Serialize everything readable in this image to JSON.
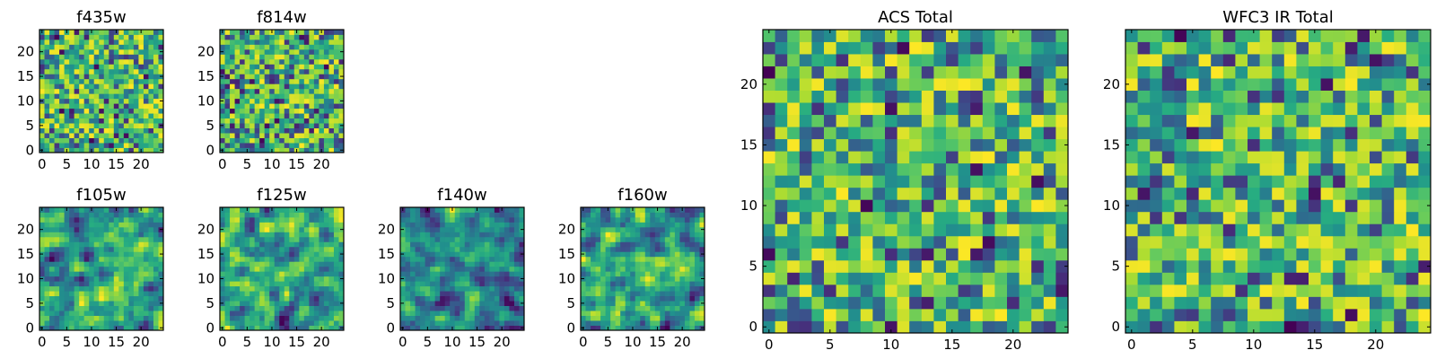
{
  "chart_data": [
    {
      "type": "heatmap",
      "title": "f435w",
      "grid_size": 25,
      "x_ticks": [
        0,
        5,
        10,
        15,
        20
      ],
      "y_ticks": [
        0,
        5,
        10,
        15,
        20
      ],
      "xlim": [
        0,
        25
      ],
      "ylim": [
        0,
        25
      ],
      "colormap": "viridis",
      "seed": 11,
      "smooth": 0,
      "mean": 0.7,
      "spread": 0.28
    },
    {
      "type": "heatmap",
      "title": "f814w",
      "grid_size": 25,
      "x_ticks": [
        0,
        5,
        10,
        15,
        20
      ],
      "y_ticks": [
        0,
        5,
        10,
        15,
        20
      ],
      "xlim": [
        0,
        25
      ],
      "ylim": [
        0,
        25
      ],
      "colormap": "viridis",
      "seed": 23,
      "smooth": 0,
      "mean": 0.68,
      "spread": 0.3
    },
    {
      "type": "heatmap",
      "title": "f105w",
      "grid_size": 25,
      "x_ticks": [
        0,
        5,
        10,
        15,
        20
      ],
      "y_ticks": [
        0,
        5,
        10,
        15,
        20
      ],
      "xlim": [
        0,
        25
      ],
      "ylim": [
        0,
        25
      ],
      "colormap": "viridis",
      "seed": 37,
      "smooth": 1,
      "mean": 0.7,
      "spread": 0.32
    },
    {
      "type": "heatmap",
      "title": "f125w",
      "grid_size": 25,
      "x_ticks": [
        0,
        5,
        10,
        15,
        20
      ],
      "y_ticks": [
        0,
        5,
        10,
        15,
        20
      ],
      "xlim": [
        0,
        25
      ],
      "ylim": [
        0,
        25
      ],
      "colormap": "viridis",
      "seed": 41,
      "smooth": 1,
      "mean": 0.68,
      "spread": 0.34
    },
    {
      "type": "heatmap",
      "title": "f140w",
      "grid_size": 25,
      "x_ticks": [
        0,
        5,
        10,
        15,
        20
      ],
      "y_ticks": [
        0,
        5,
        10,
        15,
        20
      ],
      "xlim": [
        0,
        25
      ],
      "ylim": [
        0,
        25
      ],
      "colormap": "viridis",
      "seed": 53,
      "smooth": 1,
      "mean": 0.72,
      "spread": 0.34
    },
    {
      "type": "heatmap",
      "title": "f160w",
      "grid_size": 25,
      "x_ticks": [
        0,
        5,
        10,
        15,
        20
      ],
      "y_ticks": [
        0,
        5,
        10,
        15,
        20
      ],
      "xlim": [
        0,
        25
      ],
      "ylim": [
        0,
        25
      ],
      "colormap": "viridis",
      "seed": 67,
      "smooth": 1,
      "mean": 0.62,
      "spread": 0.4
    },
    {
      "type": "heatmap",
      "title": "ACS Total",
      "grid_size": 25,
      "x_ticks": [
        0,
        5,
        10,
        15,
        20
      ],
      "y_ticks": [
        0,
        5,
        10,
        15,
        20
      ],
      "xlim": [
        0,
        25
      ],
      "ylim": [
        0,
        25
      ],
      "colormap": "viridis",
      "seed": 79,
      "smooth": 0,
      "mean": 0.7,
      "spread": 0.26
    },
    {
      "type": "heatmap",
      "title": "WFC3 IR Total",
      "grid_size": 25,
      "x_ticks": [
        0,
        5,
        10,
        15,
        20
      ],
      "y_ticks": [
        0,
        5,
        10,
        15,
        20
      ],
      "xlim": [
        0,
        25
      ],
      "ylim": [
        0,
        25
      ],
      "colormap": "viridis",
      "seed": 97,
      "smooth": 0,
      "mean": 0.66,
      "spread": 0.28
    }
  ],
  "colors": {
    "axis": "#000000",
    "background": "#ffffff"
  }
}
